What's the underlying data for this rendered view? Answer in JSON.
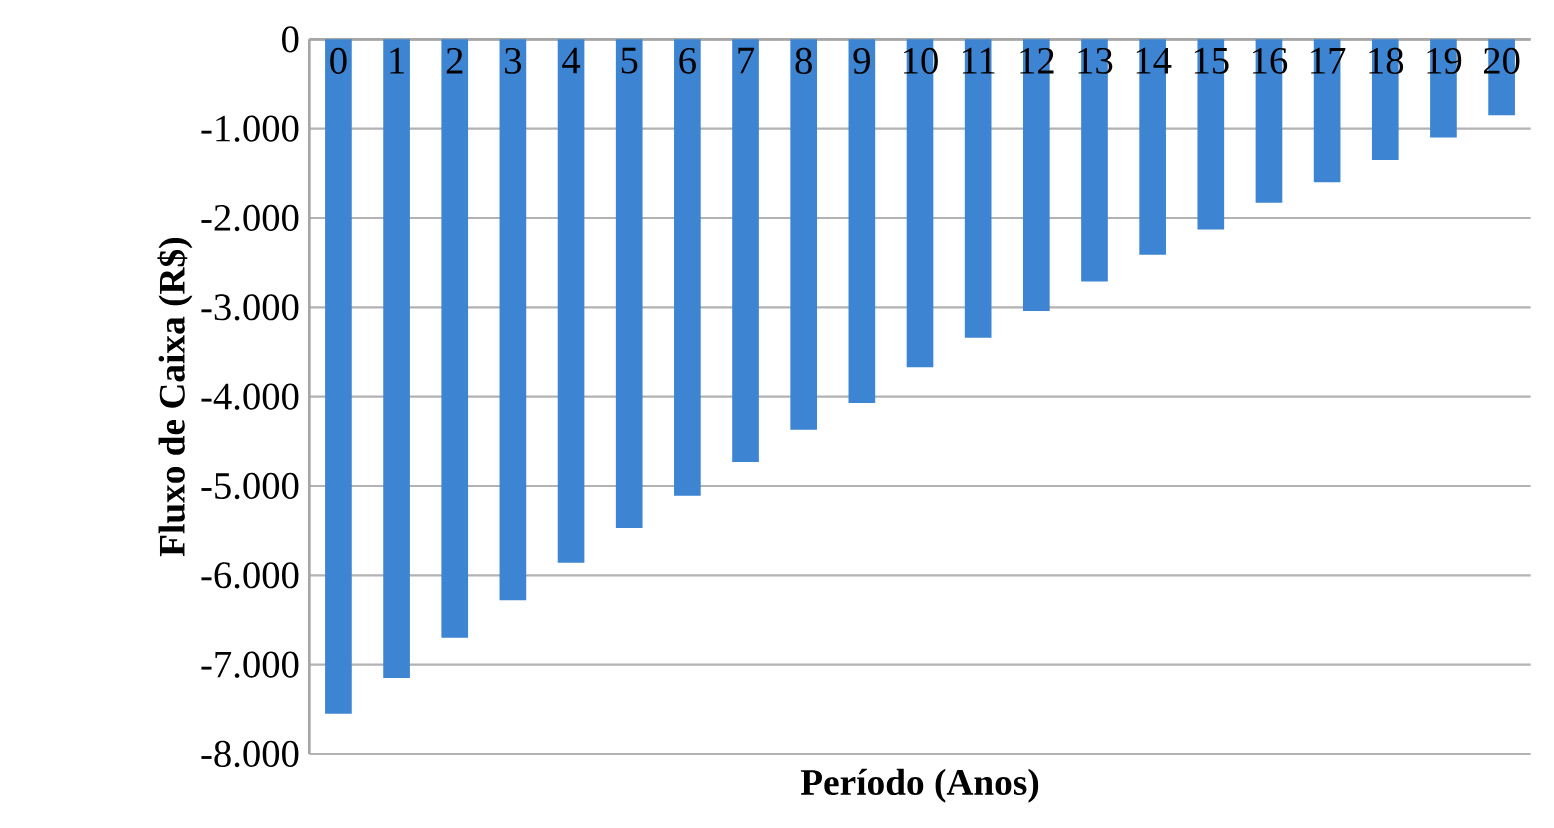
{
  "chart_data": {
    "type": "bar",
    "xlabel": "Período (Anos)",
    "ylabel": "Fluxo de Caixa (R$)",
    "categories": [
      "0",
      "1",
      "2",
      "3",
      "4",
      "5",
      "6",
      "7",
      "8",
      "9",
      "10",
      "11",
      "12",
      "13",
      "14",
      "15",
      "16",
      "17",
      "18",
      "19",
      "20"
    ],
    "values": [
      -7550,
      -7150,
      -6700,
      -6280,
      -5860,
      -5470,
      -5110,
      -4730,
      -4370,
      -4070,
      -3670,
      -3340,
      -3040,
      -2710,
      -2410,
      -2130,
      -1830,
      -1600,
      -1350,
      -1100,
      -850
    ],
    "color": "#3d85d2",
    "ylim": [
      -8000,
      0
    ],
    "yticks": [
      {
        "value": -8000,
        "label": "-8.000"
      },
      {
        "value": -7000,
        "label": "-7.000"
      },
      {
        "value": -6000,
        "label": "-6.000"
      },
      {
        "value": -5000,
        "label": "-5.000"
      },
      {
        "value": -4000,
        "label": "-4.000"
      },
      {
        "value": -3000,
        "label": "-3.000"
      },
      {
        "value": -2000,
        "label": "-2.000"
      },
      {
        "value": -1000,
        "label": "-1.000"
      },
      {
        "value": 0,
        "label": "0"
      }
    ],
    "grid": "y"
  }
}
